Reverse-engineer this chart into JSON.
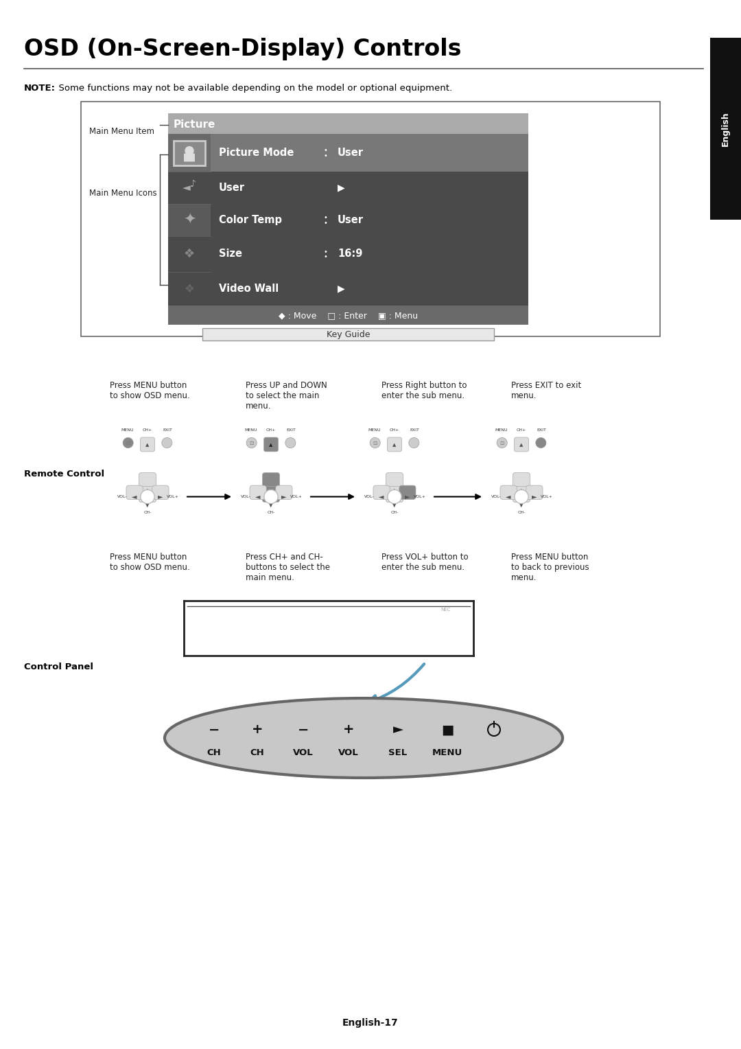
{
  "title": "OSD (On-Screen-Display) Controls",
  "note_bold": "NOTE:",
  "note_rest": "  Some functions may not be available depending on the model or optional equipment.",
  "page_label": "English-17",
  "english_tab": "English",
  "main_menu_item_label": "Main Menu Item",
  "main_menu_icons_label": "Main Menu Icons",
  "key_guide_label": "Key Guide",
  "remote_control_label": "Remote Control",
  "control_panel_label": "Control Panel",
  "osd_header": "Picture",
  "osd_header_bg": "#999999",
  "osd_body_bg": "#4a4a4a",
  "osd_icon_bg0": "#777777",
  "osd_icon_bg1": "#555555",
  "osd_icon_bg2": "#555555",
  "osd_icon_bg3": "#555555",
  "osd_icon_bg4": "#555555",
  "osd_selected_bg": "#7a7a7a",
  "osd_footer_bg": "#666666",
  "osd_footer_text": "◆ : Move    □ : Enter    ▣ : Menu",
  "osd_items": [
    {
      "label": "Picture Mode",
      "sep": ":",
      "value": "User",
      "selected": true,
      "arrow": false
    },
    {
      "label": "User",
      "sep": "",
      "value": "",
      "selected": false,
      "arrow": true
    },
    {
      "label": "Color Temp",
      "sep": ":",
      "value": "User",
      "selected": false,
      "arrow": false
    },
    {
      "label": "Size",
      "sep": ":",
      "value": "16:9",
      "selected": false,
      "arrow": false
    },
    {
      "label": "Video Wall",
      "sep": "",
      "value": "",
      "selected": false,
      "arrow": true
    }
  ],
  "remote_texts": [
    "Press MENU button\nto show OSD menu.",
    "Press UP and DOWN\nto select the main\nmenu.",
    "Press Right button to\nenter the sub menu.",
    "Press EXIT to exit\nmenu."
  ],
  "remote_highlights": [
    "menu",
    "up_down",
    "right",
    "exit"
  ],
  "control_texts": [
    "Press MENU button\nto show OSD menu.",
    "Press CH+ and CH-\nbuttons to select the\nmain menu.",
    "Press VOL+ button to\nenter the sub menu.",
    "Press MENU button\nto back to previous\nmenu."
  ],
  "bg_color": "#ffffff",
  "text_color": "#000000"
}
